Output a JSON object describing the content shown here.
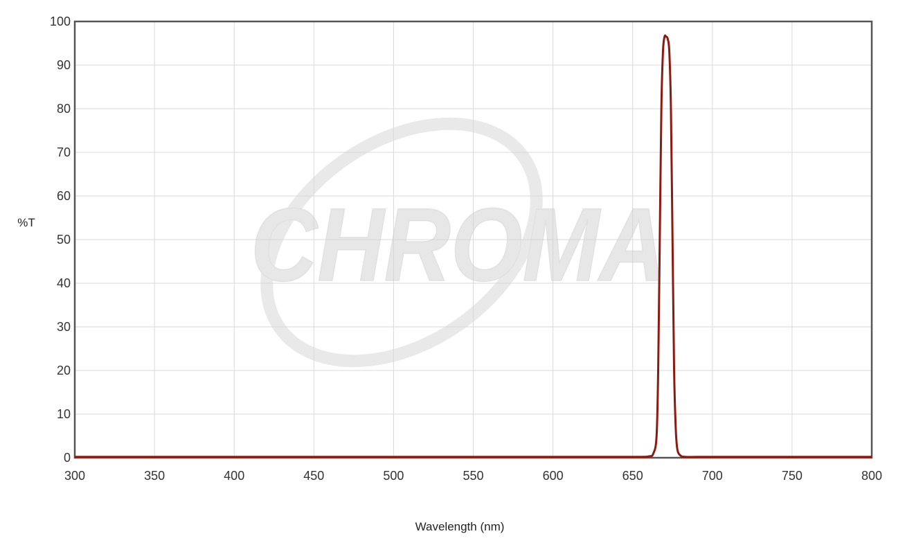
{
  "watermark": {
    "text": "CHROMA"
  },
  "chart_data": {
    "type": "line",
    "title": "",
    "xlabel": "Wavelength (nm)",
    "ylabel": "%T",
    "xlim": [
      300,
      800
    ],
    "ylim": [
      0,
      100
    ],
    "xticks": [
      300,
      350,
      400,
      450,
      500,
      550,
      600,
      650,
      700,
      750,
      800
    ],
    "yticks": [
      0,
      10,
      20,
      30,
      40,
      50,
      60,
      70,
      80,
      90,
      100
    ],
    "grid": true,
    "legend": "none",
    "line_color": "#8b1a10",
    "series": [
      {
        "x": [
          300,
          400,
          500,
          600,
          650,
          660,
          663,
          665,
          666,
          667,
          668,
          669,
          670,
          671,
          672,
          673,
          674,
          675,
          676,
          677,
          678,
          680,
          683,
          690,
          700,
          750,
          800
        ],
        "y": [
          0.2,
          0.2,
          0.2,
          0.2,
          0.2,
          0.3,
          1,
          5,
          20,
          50,
          80,
          93,
          96.5,
          96.5,
          96,
          93,
          80,
          50,
          20,
          7,
          2,
          0.5,
          0.2,
          0.2,
          0.2,
          0.2,
          0.2
        ]
      }
    ]
  }
}
